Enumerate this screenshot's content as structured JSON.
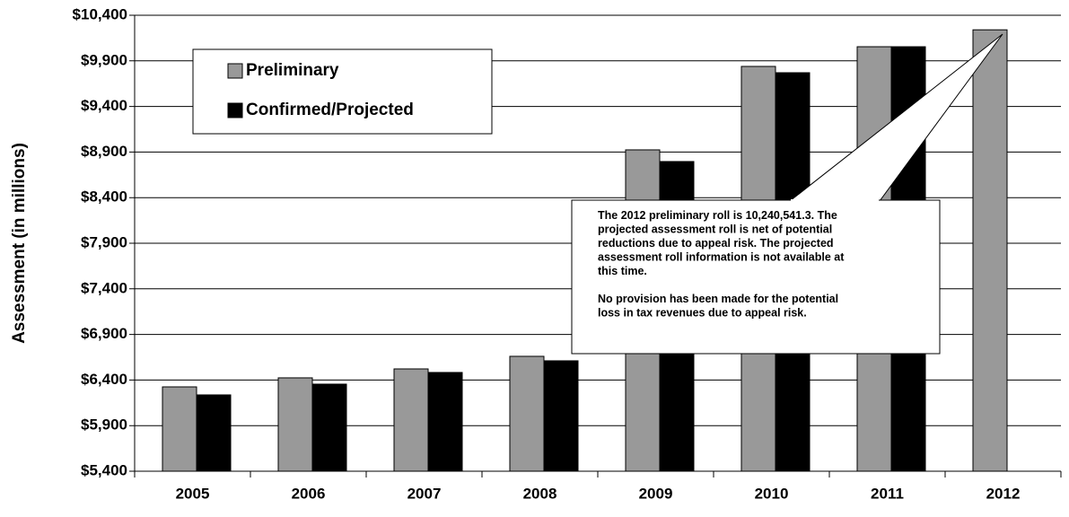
{
  "chart_data": {
    "type": "bar",
    "y_axis_label": "Assessment (in millions)",
    "categories": [
      "2005",
      "2006",
      "2007",
      "2008",
      "2009",
      "2010",
      "2011",
      "2012"
    ],
    "series": [
      {
        "name": "Preliminary",
        "color": "#999999",
        "values": [
          6325,
          6424,
          6522,
          6660,
          8924,
          9839,
          10055,
          10240.5
        ]
      },
      {
        "name": "Confirmed/Projected",
        "color": "#000000",
        "values": [
          6237,
          6355,
          6483,
          6611,
          8796,
          9770,
          10055,
          null
        ]
      }
    ],
    "ylim": [
      5400,
      10400
    ],
    "yticks": [
      {
        "value": 5400,
        "label": "$5,400"
      },
      {
        "value": 5900,
        "label": "$5,900"
      },
      {
        "value": 6400,
        "label": "$6,400"
      },
      {
        "value": 6900,
        "label": "$6,900"
      },
      {
        "value": 7400,
        "label": "$7,400"
      },
      {
        "value": 7900,
        "label": "$7,900"
      },
      {
        "value": 8400,
        "label": "$8,400"
      },
      {
        "value": 8900,
        "label": "$8,900"
      },
      {
        "value": 9400,
        "label": "$9,400"
      },
      {
        "value": 9900,
        "label": "$9,900"
      },
      {
        "value": 10400,
        "label": "$10,400"
      }
    ],
    "grid": true,
    "annotation": [
      [
        "The 2012 preliminary roll is 10,240,541.3. The",
        "projected assessment roll is net of potential",
        "reductions due to appeal risk. The projected",
        "assessment roll information is not available at",
        "this time."
      ],
      [
        "No provision has been made for the potential",
        "loss in tax revenues due to appeal risk."
      ]
    ]
  }
}
